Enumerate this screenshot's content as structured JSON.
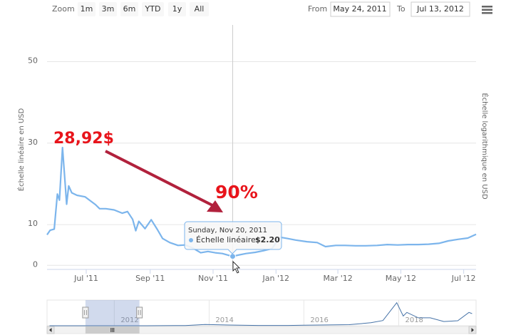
{
  "toolbar": {
    "zoom_label": "Zoom",
    "zoom_buttons": [
      "1m",
      "3m",
      "6m",
      "YTD",
      "1y",
      "All"
    ],
    "from_label": "From",
    "from": "May 24, 2011",
    "to_label": "To",
    "to": "Jul 13, 2012"
  },
  "chart_data": [
    {
      "type": "line",
      "x": [
        "2011-05-24",
        "2011-05-27",
        "2011-05-31",
        "2011-06-03",
        "2011-06-05",
        "2011-06-08",
        "2011-06-10",
        "2011-06-12",
        "2011-06-14",
        "2011-06-17",
        "2011-06-22",
        "2011-06-30",
        "2011-07-10",
        "2011-07-14",
        "2011-07-20",
        "2011-07-28",
        "2011-08-05",
        "2011-08-10",
        "2011-08-15",
        "2011-08-18",
        "2011-08-21",
        "2011-08-27",
        "2011-09-02",
        "2011-09-08",
        "2011-09-13",
        "2011-09-20",
        "2011-09-28",
        "2011-10-05",
        "2011-10-12",
        "2011-10-20",
        "2011-10-27",
        "2011-11-03",
        "2011-11-10",
        "2011-11-17",
        "2011-11-20",
        "2011-11-25",
        "2011-12-03",
        "2011-12-12",
        "2011-12-20",
        "2011-12-28",
        "2012-01-05",
        "2012-01-12",
        "2012-01-20",
        "2012-01-31",
        "2012-02-10",
        "2012-02-18",
        "2012-02-28",
        "2012-03-08",
        "2012-03-18",
        "2012-03-28",
        "2012-04-08",
        "2012-04-18",
        "2012-04-28",
        "2012-05-08",
        "2012-05-18",
        "2012-05-28",
        "2012-06-07",
        "2012-06-16",
        "2012-06-26",
        "2012-07-05",
        "2012-07-13"
      ],
      "series": [
        {
          "name": "Échelle linéaire",
          "color": "#7cb5ec",
          "values": [
            7.5,
            8.6,
            8.9,
            17.5,
            16,
            28.92,
            22,
            15,
            19.5,
            17.8,
            17.2,
            16.8,
            14.9,
            13.9,
            13.9,
            13.6,
            12.8,
            13.2,
            11.3,
            8.5,
            10.8,
            9.0,
            11.2,
            8.8,
            6.6,
            5.6,
            4.9,
            5.0,
            4.3,
            3.1,
            3.4,
            3.1,
            2.9,
            2.4,
            2.2,
            2.5,
            2.9,
            3.2,
            3.6,
            4.1,
            6.9,
            6.6,
            6.2,
            5.8,
            5.6,
            4.6,
            4.9,
            4.9,
            4.8,
            4.8,
            4.9,
            5.1,
            5.0,
            5.1,
            5.1,
            5.2,
            5.4,
            6.0,
            6.4,
            6.7,
            7.6
          ]
        }
      ],
      "xlim": [
        "2011-05-24",
        "2012-07-13"
      ],
      "xticks": [
        {
          "value": "2011-07-01",
          "label": "Jul '11"
        },
        {
          "value": "2011-09-01",
          "label": "Sep '11"
        },
        {
          "value": "2011-11-01",
          "label": "Nov '11"
        },
        {
          "value": "2012-01-01",
          "label": "Jan '12"
        },
        {
          "value": "2012-03-01",
          "label": "Mar '12"
        },
        {
          "value": "2012-05-01",
          "label": "May '12"
        },
        {
          "value": "2012-07-01",
          "label": "Jul '12"
        }
      ],
      "ylim": [
        -1,
        59
      ],
      "yticks": [
        0,
        10,
        30,
        50
      ],
      "grid": true,
      "y_label": "Échelle linéaire en USD",
      "y2_label": "Échelle logarithmique en USD",
      "annotations": [
        {
          "text": "28,92$",
          "color": "#e8141b"
        },
        {
          "text": "90%",
          "color": "#e8141b"
        }
      ],
      "tooltip": {
        "x": "2011-11-20",
        "date": "Sunday, Nov 20, 2011",
        "label": "Échelle linéaire:",
        "value": 2.2,
        "value_label": "$2.20"
      }
    },
    {
      "type": "navigator",
      "x": [
        "2010-08-20",
        "2011-06-08",
        "2012-01-01",
        "2012-09-01",
        "2013-04-10",
        "2013-07-01",
        "2013-12-01",
        "2014-06-01",
        "2015-01-15",
        "2015-09-01",
        "2016-01-01",
        "2016-07-01",
        "2016-12-15",
        "2017-06-01",
        "2017-09-01",
        "2017-12-17",
        "2018-02-05",
        "2018-03-05",
        "2018-06-01",
        "2018-09-01",
        "2018-12-15",
        "2019-04-01",
        "2019-06-26",
        "2019-07-20"
      ],
      "series": [
        {
          "name": "Échelle linéaire",
          "color": "#4572a7",
          "values": [
            0.07,
            29,
            6,
            11,
            200,
            90,
            1000,
            600,
            250,
            230,
            400,
            650,
            900,
            2500,
            4300,
            19000,
            8000,
            11000,
            6500,
            6500,
            3500,
            4100,
            11000,
            10000
          ]
        }
      ],
      "xlim": [
        "2010-08-01",
        "2019-08-20"
      ],
      "ylim": [
        0,
        20000
      ],
      "xticks": [
        {
          "value": "2012-01-01",
          "label": "2012"
        },
        {
          "value": "2014-01-01",
          "label": "2014"
        },
        {
          "value": "2016-01-01",
          "label": "2016"
        },
        {
          "value": "2018-01-01",
          "label": "2018"
        }
      ]
    }
  ]
}
